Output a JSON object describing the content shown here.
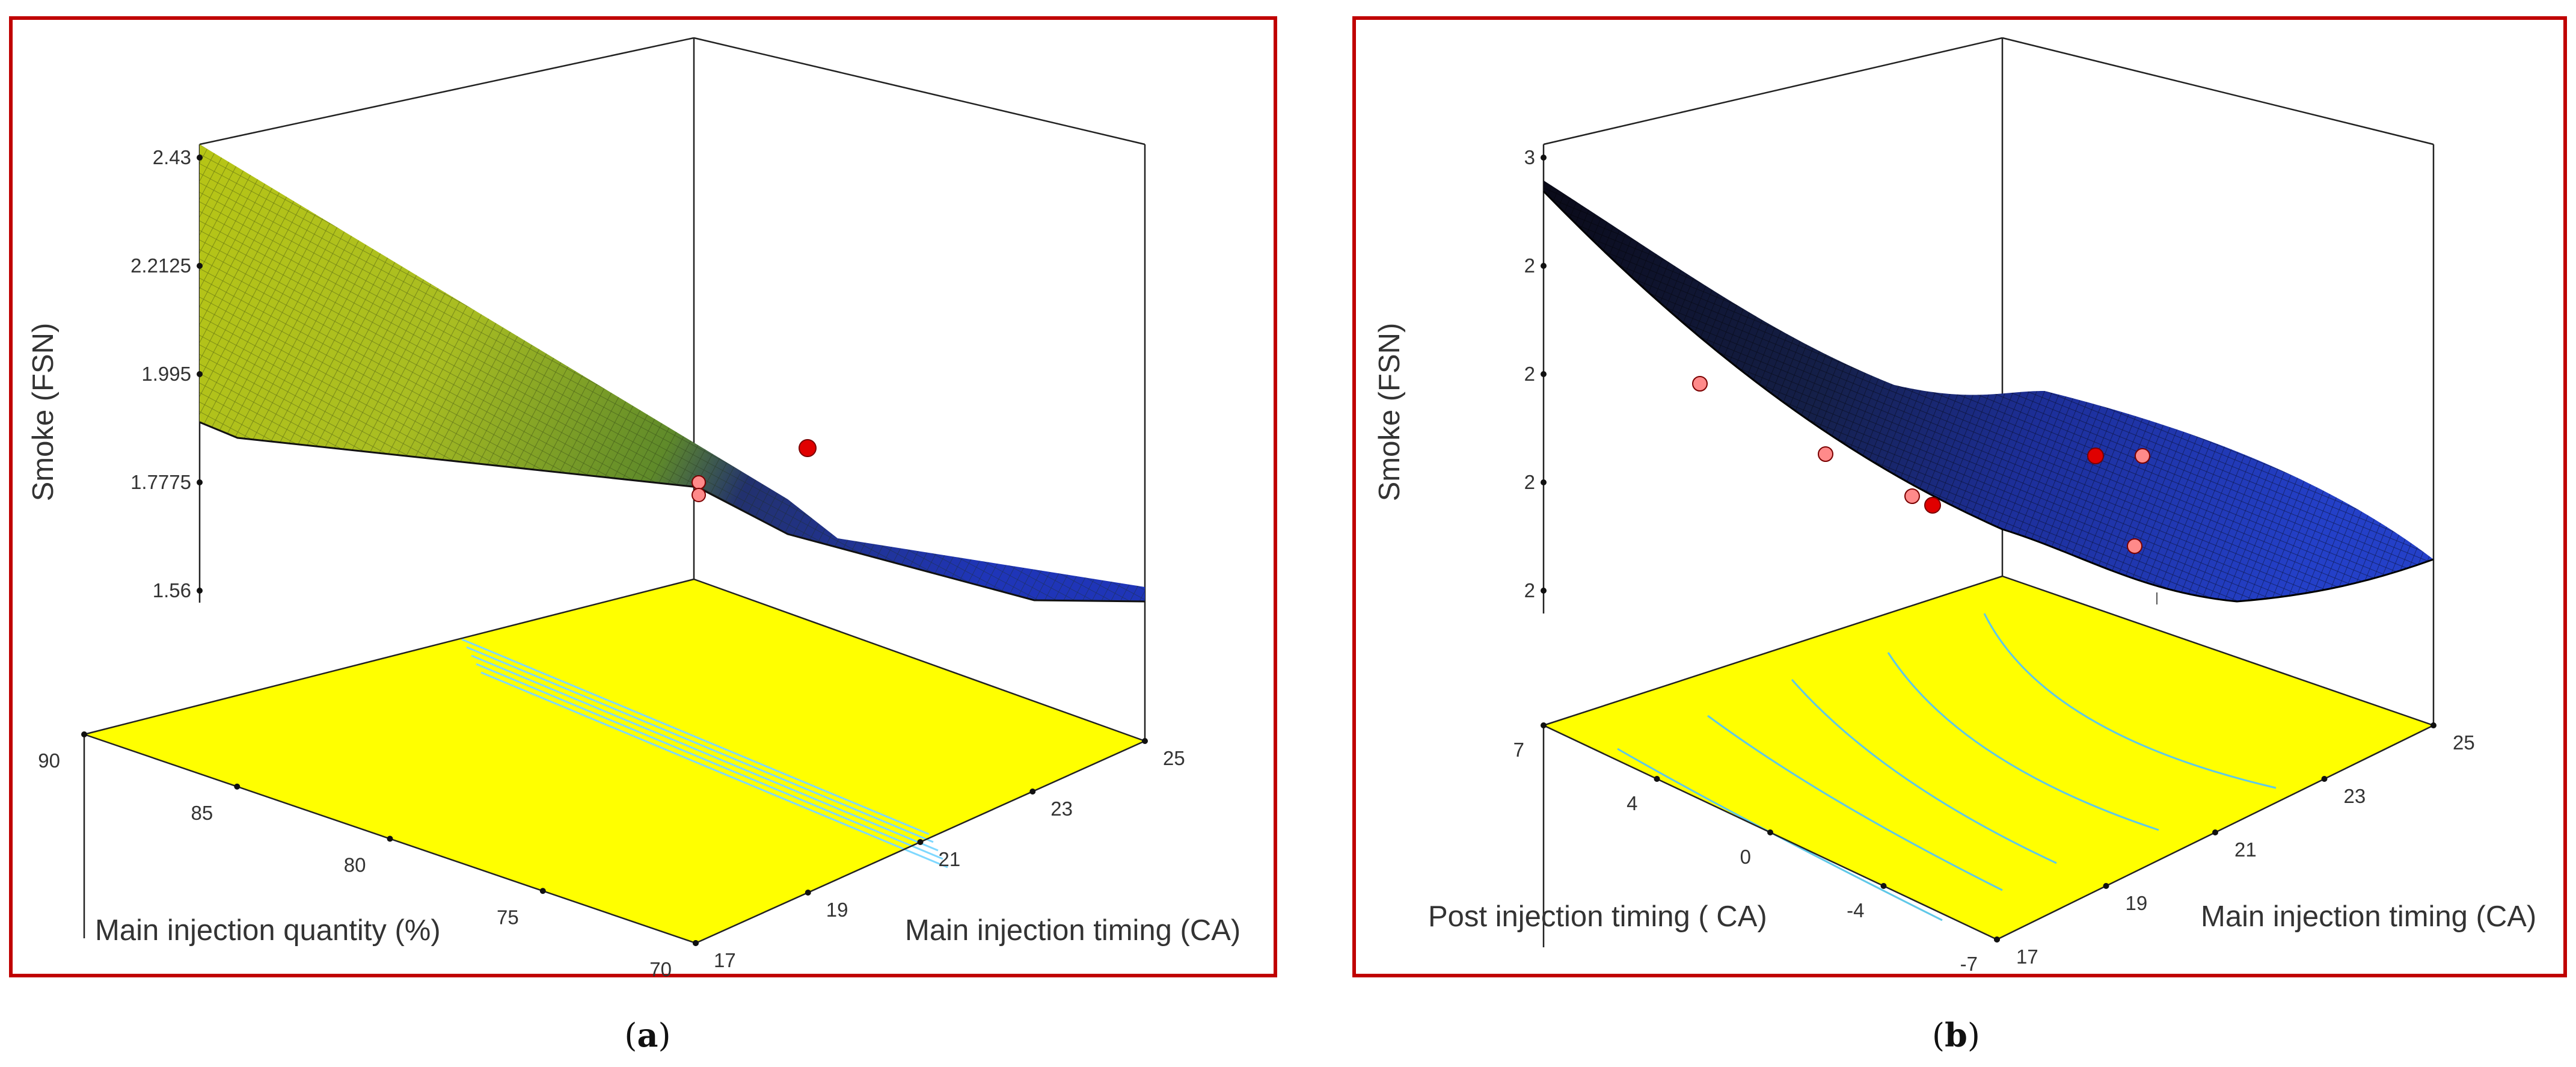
{
  "figure": {
    "captions": [
      "(a)",
      "(b)"
    ],
    "caption_parts": [
      {
        "open": "(",
        "letter": "a",
        "close": ")"
      },
      {
        "open": "(",
        "letter": "b",
        "close": ")"
      }
    ]
  },
  "colors": {
    "frame": "#c00000",
    "floor": "#ffff00",
    "contour": "#7fd8ff",
    "surface_high": "#c8d400",
    "surface_low": "#1c2fae",
    "design_point": "#ff8a8a",
    "design_point_center": "#e00000"
  },
  "chart_data": [
    {
      "type": "surface3d",
      "panel": "a",
      "zlabel": "Smoke (FSN)",
      "xlabel": "Main injection quantity (%)",
      "ylabel": "Main injection timing (CA)",
      "z_ticks": [
        "2.43",
        "2.2125",
        "1.995",
        "1.7775",
        "1.56"
      ],
      "x_ticks": [
        "90",
        "85",
        "80",
        "75",
        "70"
      ],
      "y_ticks": [
        "17",
        "19",
        "21",
        "23",
        "25"
      ],
      "zlim": [
        1.56,
        2.43
      ],
      "xlim": [
        70,
        90
      ],
      "ylim": [
        17,
        25
      ],
      "surface_corners": {
        "q90_t17": 2.43,
        "q70_t17": 1.85,
        "q90_t25": 1.99,
        "q70_t25": 1.69
      },
      "design_points": [
        {
          "quantity": 80,
          "timing": 21,
          "smoke": 1.94,
          "type": "center"
        },
        {
          "quantity": 90,
          "timing": 17,
          "smoke": 1.78,
          "type": "point"
        },
        {
          "quantity": 90,
          "timing": 17,
          "smoke": 1.75,
          "type": "point"
        }
      ]
    },
    {
      "type": "surface3d",
      "panel": "b",
      "zlabel": "Smoke (FSN)",
      "xlabel": "Post injection timing ( CA)",
      "ylabel": "Main injection timing (CA)",
      "z_ticks": [
        "3",
        "2",
        "2",
        "2",
        "2"
      ],
      "x_ticks": [
        "7",
        "4",
        "0",
        "-4",
        "-7"
      ],
      "y_ticks": [
        "17",
        "19",
        "21",
        "23",
        "25"
      ],
      "xlim": [
        -7,
        7
      ],
      "ylim": [
        17,
        25
      ],
      "design_points": [
        {
          "post": 7,
          "main": 17,
          "type": "point"
        },
        {
          "post": 2,
          "main": 18,
          "type": "point"
        },
        {
          "post": 0,
          "main": 20,
          "type": "point"
        },
        {
          "post": 0,
          "main": 21,
          "type": "center"
        },
        {
          "post": -4,
          "main": 23,
          "type": "point"
        },
        {
          "post": -7,
          "main": 25,
          "type": "point"
        }
      ]
    }
  ]
}
